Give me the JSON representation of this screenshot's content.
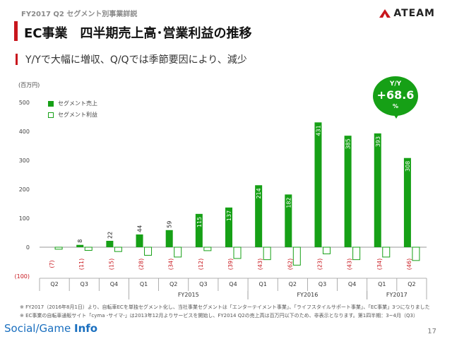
{
  "header": {
    "small_title": "FY2017 Q2 セグメント別事業詳説",
    "title": "EC事業　四半期売上高･営業利益の推移",
    "subtitle": "Y/Yで大幅に増収、Q/Qでは季節要因により、減少",
    "logo_text": "ATEAM",
    "logo_icon": "ateam-logo-icon"
  },
  "badge": {
    "label": "Y/Y",
    "value": "+68.6",
    "unit": "%"
  },
  "chart_data": {
    "type": "bar",
    "unit_label": "(百万円)",
    "categories": [
      "Q2",
      "Q3",
      "Q4",
      "Q1",
      "Q2",
      "Q3",
      "Q4",
      "Q1",
      "Q2",
      "Q3",
      "Q4",
      "Q1",
      "Q2"
    ],
    "fiscal_years": [
      {
        "label": "FY2015",
        "start": 3,
        "end": 6
      },
      {
        "label": "FY2016",
        "start": 7,
        "end": 10
      },
      {
        "label": "FY2017",
        "start": 11,
        "end": 12
      }
    ],
    "series": [
      {
        "name": "セグメント売上",
        "values": [
          0,
          8,
          22,
          44,
          59,
          115,
          137,
          214,
          182,
          431,
          385,
          393,
          308
        ],
        "labels": [
          "",
          "8",
          "22",
          "44",
          "59",
          "115",
          "137",
          "214",
          "182",
          "431",
          "385",
          "393",
          "308"
        ]
      },
      {
        "name": "セグメント利益",
        "values": [
          -7,
          -11,
          -15,
          -28,
          -34,
          -12,
          -39,
          -43,
          -62,
          -23,
          -43,
          -34,
          -46
        ],
        "labels": [
          "(7)",
          "(11)",
          "(15)",
          "(28)",
          "(34)",
          "(12)",
          "(39)",
          "(43)",
          "(62)",
          "(23)",
          "(43)",
          "(34)",
          "(46)"
        ]
      }
    ],
    "yticks": [
      500,
      400,
      300,
      200,
      100,
      0,
      -100
    ],
    "ytick_labels": [
      "500",
      "400",
      "300",
      "200",
      "100",
      "0",
      "(100)"
    ],
    "ylim": [
      -100,
      500
    ],
    "colors": {
      "sales": "#16a016",
      "profit_border": "#16a016",
      "profit_label": "#c8161d",
      "axis": "#999999"
    },
    "legend_position": "top-left"
  },
  "notes": [
    "※ FY2017（2016年8月1日）より、自転車ECを単独セグメント化し、当社事業セグメントは「エンターテイメント事業」、「ライフスタイルサポート事業」、「EC事業」3つになりました",
    "※ EC事業の自転車通販サイト「cyma -サイマ-」は2013年12月よりサービスを開始し、FY2014 Q2の売上高は百万円以下のため、非表示となります。第1四半期：3~4月（Q3）"
  ],
  "footer": {
    "brand_a": "Social",
    "brand_b": "Game",
    "brand_c": "Info",
    "page": "17"
  }
}
